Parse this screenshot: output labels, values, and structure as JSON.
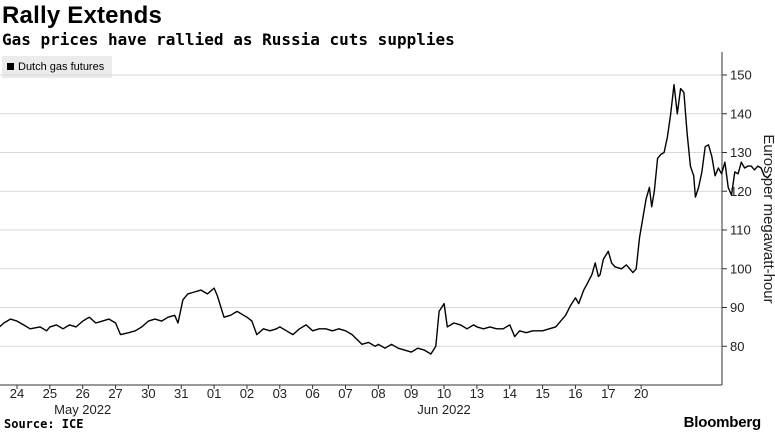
{
  "title": "Rally Extends",
  "subtitle": "Gas prices have rallied as Russia cuts supplies",
  "legend": {
    "label": "Dutch gas futures",
    "color": "#000000"
  },
  "source": "Source: ICE",
  "brand": "Bloomberg",
  "chart_data": {
    "type": "line",
    "ylabel": "Euros per megawatt-hour",
    "ylim": [
      70,
      152
    ],
    "yticks": [
      80,
      90,
      100,
      110,
      120,
      130,
      140,
      150
    ],
    "y_axis_position": "right",
    "grid": true,
    "legend_position": "top-left",
    "xtick_labels": [
      "24",
      "25",
      "26",
      "27",
      "30",
      "31",
      "01",
      "02",
      "03",
      "06",
      "07",
      "08",
      "09",
      "10",
      "13",
      "14",
      "15",
      "16",
      "17",
      "20"
    ],
    "month_labels": [
      {
        "label": "May 2022",
        "at_tick": 2
      },
      {
        "label": "Jun 2022",
        "at_tick": 13
      }
    ],
    "series": [
      {
        "name": "Dutch gas futures",
        "color": "#000000",
        "points": [
          [
            -0.6,
            84.5
          ],
          [
            -0.4,
            86.0
          ],
          [
            -0.2,
            87.0
          ],
          [
            0.0,
            86.5
          ],
          [
            0.2,
            85.5
          ],
          [
            0.4,
            84.5
          ],
          [
            0.7,
            85.0
          ],
          [
            0.9,
            84.0
          ],
          [
            1.0,
            85.0
          ],
          [
            1.2,
            85.5
          ],
          [
            1.4,
            84.5
          ],
          [
            1.6,
            85.5
          ],
          [
            1.8,
            85.0
          ],
          [
            2.0,
            86.5
          ],
          [
            2.2,
            87.5
          ],
          [
            2.4,
            86.0
          ],
          [
            2.6,
            86.5
          ],
          [
            2.8,
            87.0
          ],
          [
            3.0,
            86.0
          ],
          [
            3.15,
            83.0
          ],
          [
            3.4,
            83.5
          ],
          [
            3.6,
            84.0
          ],
          [
            3.8,
            85.0
          ],
          [
            4.0,
            86.5
          ],
          [
            4.2,
            87.0
          ],
          [
            4.4,
            86.5
          ],
          [
            4.6,
            87.5
          ],
          [
            4.8,
            88.0
          ],
          [
            4.9,
            86.0
          ],
          [
            5.05,
            92.0
          ],
          [
            5.2,
            93.5
          ],
          [
            5.4,
            94.0
          ],
          [
            5.6,
            94.5
          ],
          [
            5.8,
            93.5
          ],
          [
            6.0,
            95.0
          ],
          [
            6.1,
            93.0
          ],
          [
            6.3,
            87.5
          ],
          [
            6.5,
            88.0
          ],
          [
            6.7,
            89.0
          ],
          [
            6.9,
            88.0
          ],
          [
            7.0,
            87.5
          ],
          [
            7.15,
            86.5
          ],
          [
            7.3,
            83.0
          ],
          [
            7.5,
            84.5
          ],
          [
            7.7,
            84.0
          ],
          [
            7.9,
            84.5
          ],
          [
            8.0,
            85.0
          ],
          [
            8.2,
            84.0
          ],
          [
            8.4,
            83.0
          ],
          [
            8.6,
            84.5
          ],
          [
            8.8,
            85.5
          ],
          [
            9.0,
            84.0
          ],
          [
            9.2,
            84.5
          ],
          [
            9.4,
            84.5
          ],
          [
            9.6,
            84.0
          ],
          [
            9.8,
            84.5
          ],
          [
            10.0,
            84.0
          ],
          [
            10.2,
            83.0
          ],
          [
            10.5,
            80.5
          ],
          [
            10.7,
            81.0
          ],
          [
            10.9,
            80.0
          ],
          [
            11.0,
            80.5
          ],
          [
            11.2,
            79.5
          ],
          [
            11.4,
            80.5
          ],
          [
            11.6,
            79.5
          ],
          [
            11.8,
            79.0
          ],
          [
            12.0,
            78.5
          ],
          [
            12.2,
            79.5
          ],
          [
            12.4,
            79.0
          ],
          [
            12.6,
            78.0
          ],
          [
            12.75,
            80.0
          ],
          [
            12.85,
            89.0
          ],
          [
            13.0,
            91.0
          ],
          [
            13.1,
            85.0
          ],
          [
            13.3,
            86.0
          ],
          [
            13.5,
            85.5
          ],
          [
            13.7,
            84.5
          ],
          [
            13.9,
            85.5
          ],
          [
            14.0,
            85.0
          ],
          [
            14.2,
            84.5
          ],
          [
            14.4,
            85.0
          ],
          [
            14.6,
            84.5
          ],
          [
            14.8,
            84.5
          ],
          [
            15.0,
            85.5
          ],
          [
            15.15,
            82.5
          ],
          [
            15.3,
            84.0
          ],
          [
            15.5,
            83.5
          ],
          [
            15.7,
            84.0
          ],
          [
            15.9,
            84.0
          ],
          [
            16.0,
            84.0
          ],
          [
            16.2,
            84.5
          ],
          [
            16.4,
            85.0
          ],
          [
            16.55,
            86.5
          ],
          [
            16.7,
            88.0
          ],
          [
            16.85,
            90.5
          ],
          [
            17.0,
            92.5
          ],
          [
            17.1,
            91.0
          ],
          [
            17.25,
            94.5
          ],
          [
            17.35,
            96.0
          ],
          [
            17.5,
            98.5
          ],
          [
            17.6,
            101.5
          ],
          [
            17.7,
            98.0
          ],
          [
            17.75,
            98.5
          ],
          [
            17.85,
            102.5
          ],
          [
            18.0,
            104.5
          ],
          [
            18.1,
            101.5
          ],
          [
            18.2,
            100.5
          ],
          [
            18.4,
            100.0
          ],
          [
            18.55,
            101.0
          ],
          [
            18.75,
            99.0
          ],
          [
            18.85,
            100.0
          ],
          [
            18.95,
            108.0
          ],
          [
            19.05,
            113.0
          ],
          [
            19.15,
            118.0
          ],
          [
            19.25,
            121.0
          ],
          [
            19.32,
            116.0
          ],
          [
            19.4,
            120.0
          ],
          [
            19.5,
            128.5
          ],
          [
            19.6,
            129.5
          ],
          [
            19.7,
            130.0
          ],
          [
            19.8,
            134.0
          ],
          [
            19.9,
            140.0
          ],
          [
            20.0,
            147.5
          ],
          [
            20.1,
            140.0
          ],
          [
            20.2,
            146.5
          ],
          [
            20.3,
            145.5
          ],
          [
            20.4,
            135.0
          ],
          [
            20.5,
            126.5
          ],
          [
            20.6,
            124.0
          ],
          [
            20.65,
            118.5
          ],
          [
            20.75,
            121.0
          ],
          [
            20.85,
            125.0
          ],
          [
            20.95,
            131.5
          ],
          [
            21.05,
            132.0
          ],
          [
            21.15,
            129.0
          ],
          [
            21.25,
            124.0
          ],
          [
            21.35,
            126.0
          ],
          [
            21.45,
            124.5
          ],
          [
            21.55,
            127.5
          ],
          [
            21.65,
            121.0
          ],
          [
            21.75,
            119.0
          ],
          [
            21.85,
            125.0
          ],
          [
            21.95,
            124.5
          ],
          [
            22.05,
            127.5
          ],
          [
            22.15,
            126.0
          ],
          [
            22.25,
            126.5
          ],
          [
            22.35,
            126.5
          ],
          [
            22.45,
            125.5
          ],
          [
            22.55,
            126.5
          ],
          [
            22.65,
            126.0
          ],
          [
            22.75,
            124.0
          ],
          [
            22.85,
            123.5
          ],
          [
            22.95,
            124.5
          ]
        ]
      }
    ]
  }
}
